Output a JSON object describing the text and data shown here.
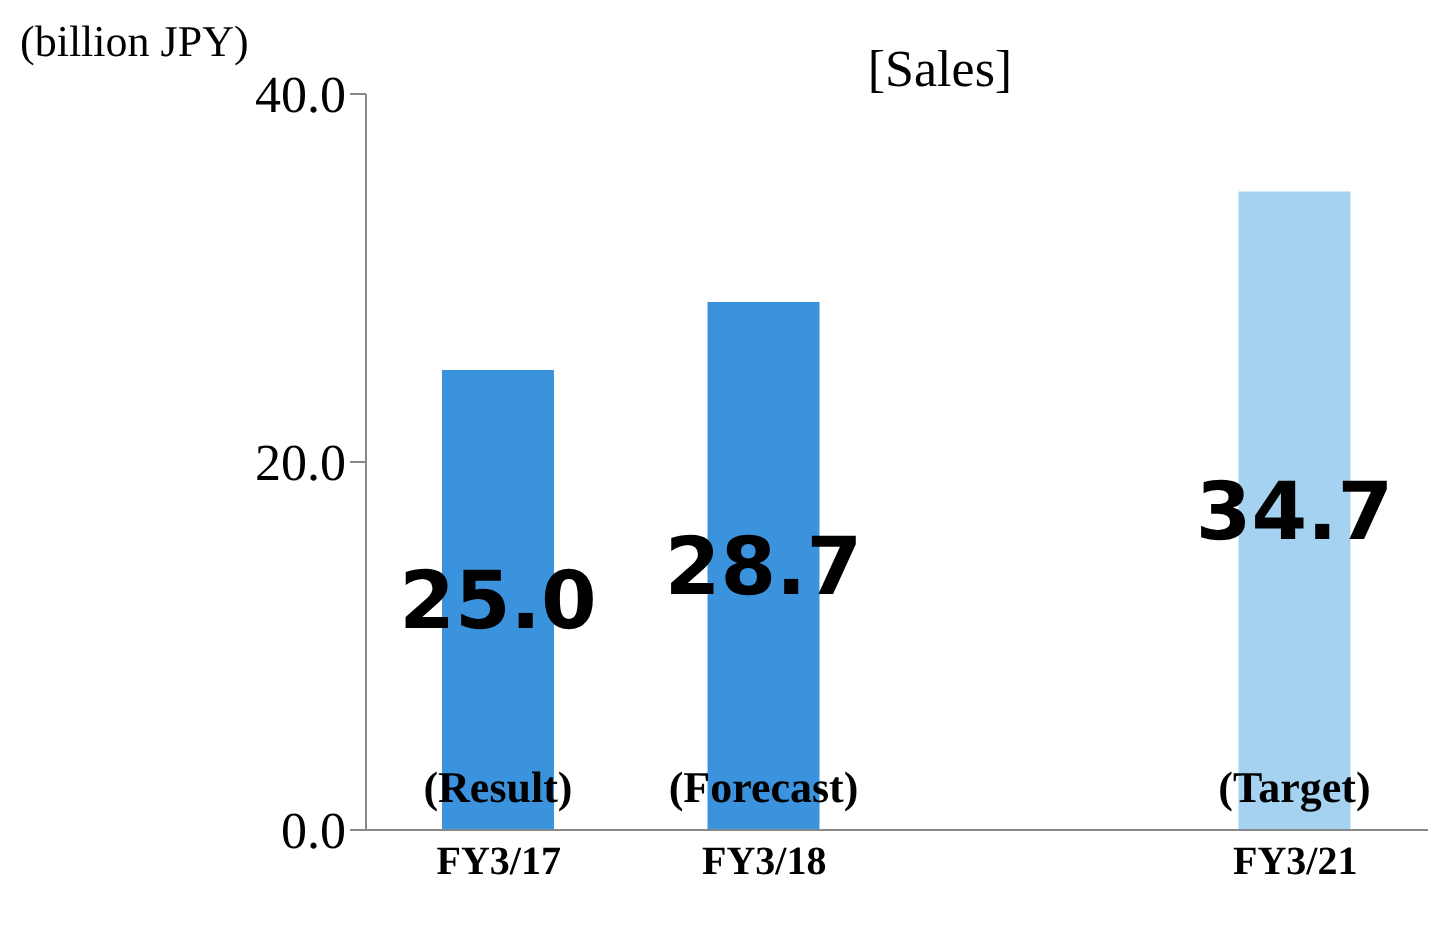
{
  "chart_data": {
    "type": "bar",
    "title": "[Sales]",
    "ylabel": "(billion JPY)",
    "categories": [
      "FY3/17",
      "FY3/18",
      null,
      "FY3/21"
    ],
    "values": [
      25.0,
      28.7,
      null,
      34.7
    ],
    "colors": [
      "#3b93de",
      "#3b93de",
      "#a4d2f0",
      "#a4d2f0"
    ],
    "ylim": [
      0,
      40
    ],
    "yticks": [
      {
        "value": 0,
        "label": "0.0"
      },
      {
        "value": 20,
        "label": "20.0"
      },
      {
        "value": 40,
        "label": "40.0"
      }
    ],
    "value_labels": [
      "25.0",
      "28.7",
      null,
      "34.7"
    ],
    "annotations": [
      "(Result)",
      "(Forecast)",
      "(Target)"
    ],
    "grid": false,
    "legend": false
  }
}
